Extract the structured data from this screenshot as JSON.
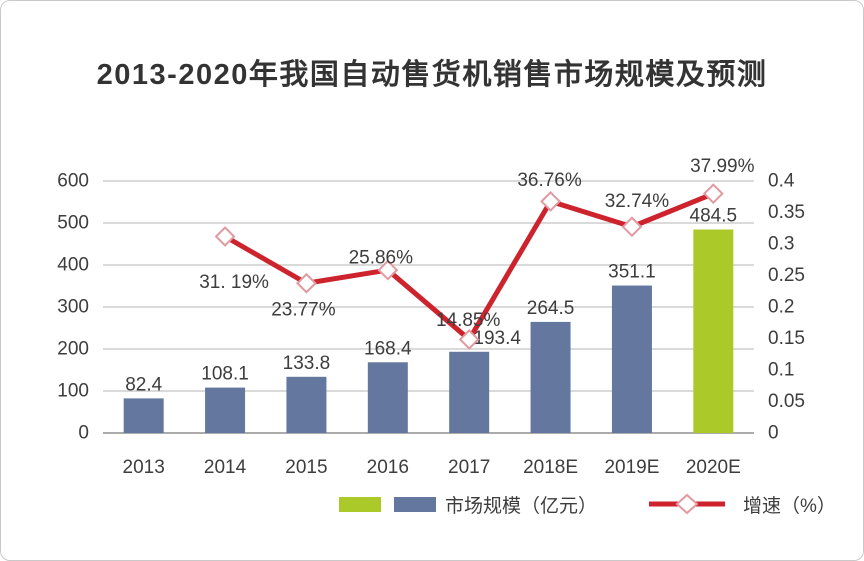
{
  "window": {
    "background": "#ffffff",
    "border_color": "#c9c9c9"
  },
  "chart_data": {
    "type": "bar+line",
    "title": "2013-2020年我国自动售货机销售市场规模及预测",
    "categories": [
      "2013",
      "2014",
      "2015",
      "2016",
      "2017",
      "2018E",
      "2019E",
      "2020E"
    ],
    "series": [
      {
        "name": "市场规模（亿元）",
        "type": "bar",
        "axis": "left",
        "values": [
          82.4,
          108.1,
          133.8,
          168.4,
          193.4,
          264.5,
          351.1,
          484.5
        ],
        "labels": [
          "82.4",
          "108.1",
          "133.8",
          "168.4",
          "193.4",
          "264.5",
          "351.1",
          "484.5"
        ],
        "color": "#64779e",
        "highlight_color": "#abca2a",
        "highlight_index": 7
      },
      {
        "name": "增速（%）",
        "type": "line",
        "axis": "right",
        "start_category_index": 1,
        "values": [
          0.3119,
          0.2377,
          0.2586,
          0.1485,
          0.3676,
          0.3274,
          0.3799
        ],
        "labels": [
          "31. 19%",
          "23.77%",
          "25.86%",
          "14.85%",
          "36.76%",
          "32.74%",
          "37.99%"
        ],
        "color": "#cd232d",
        "marker": "diamond",
        "marker_fill": "#ffffff",
        "marker_stroke": "#e09aa0"
      }
    ],
    "left_axis": {
      "min": 0,
      "max": 600,
      "step": 100,
      "ticks": [
        "0",
        "100",
        "200",
        "300",
        "400",
        "500",
        "600"
      ]
    },
    "right_axis": {
      "min": 0,
      "max": 0.4,
      "step": 0.05,
      "ticks": [
        "0",
        "0.05",
        "0.1",
        "0.15",
        "0.2",
        "0.25",
        "0.3",
        "0.35",
        "0.4"
      ]
    },
    "grid": true,
    "legend_position": "bottom",
    "legend": {
      "market_size": {
        "label": "市场规模（亿元）",
        "swatch_colors": [
          "#abca2a",
          "#64779e"
        ]
      },
      "growth": {
        "label": "增速（%）",
        "line_color": "#cd232d"
      }
    },
    "layout_hints": {
      "bar_label_dx": [
        0,
        0,
        0,
        0,
        28,
        0,
        0,
        0
      ],
      "pct_label_dx": [
        9,
        -3,
        -7,
        -1,
        -1,
        5,
        9
      ],
      "pct_label_dy": [
        46,
        27,
        -12,
        -19,
        -21,
        -25,
        -27
      ]
    },
    "text_color": "#3d3d3d",
    "gridline_color": "#c4c4c4",
    "axisline_color": "#8f8f8f"
  }
}
